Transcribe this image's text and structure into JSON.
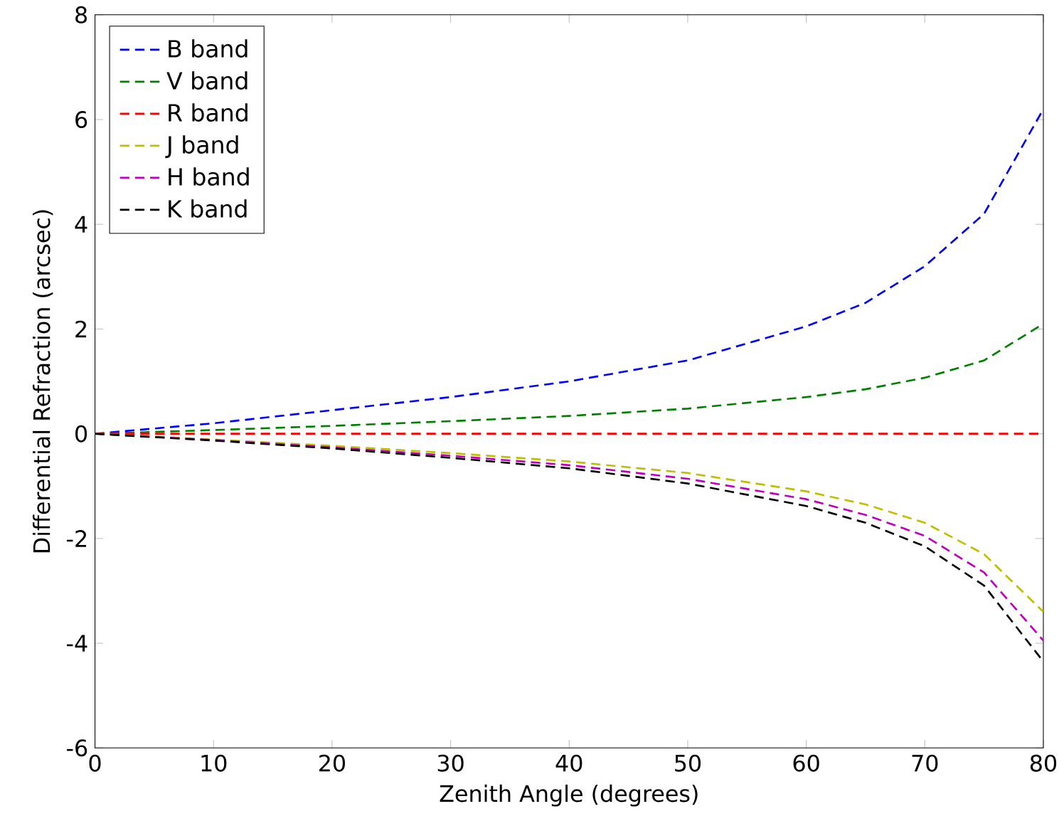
{
  "chart_data": {
    "type": "line",
    "xlabel": "Zenith Angle (degrees)",
    "ylabel": "Differential Refraction (arcsec)",
    "x": [
      0,
      10,
      20,
      30,
      40,
      50,
      60,
      65,
      70,
      75,
      80
    ],
    "series": [
      {
        "name": "B band",
        "color": "#0000ff",
        "values": [
          0,
          0.2,
          0.45,
          0.7,
          1.0,
          1.4,
          2.05,
          2.5,
          3.2,
          4.2,
          6.2
        ]
      },
      {
        "name": "V band",
        "color": "#008000",
        "values": [
          0,
          0.07,
          0.15,
          0.24,
          0.34,
          0.48,
          0.7,
          0.85,
          1.07,
          1.4,
          2.1
        ]
      },
      {
        "name": "R band",
        "color": "#ff0000",
        "values": [
          0,
          0,
          0,
          0,
          0,
          0,
          0,
          0,
          0,
          0,
          0
        ]
      },
      {
        "name": "J band",
        "color": "#bfbf00",
        "values": [
          0,
          -0.11,
          -0.23,
          -0.37,
          -0.53,
          -0.75,
          -1.1,
          -1.35,
          -1.7,
          -2.3,
          -3.4
        ]
      },
      {
        "name": "H band",
        "color": "#bf00bf",
        "values": [
          0,
          -0.12,
          -0.26,
          -0.42,
          -0.6,
          -0.86,
          -1.25,
          -1.55,
          -1.95,
          -2.65,
          -3.95
        ]
      },
      {
        "name": "K band",
        "color": "#000000",
        "values": [
          0,
          -0.13,
          -0.28,
          -0.46,
          -0.66,
          -0.95,
          -1.38,
          -1.7,
          -2.15,
          -2.9,
          -4.35
        ]
      }
    ],
    "xlim": [
      0,
      80
    ],
    "ylim": [
      -6,
      8
    ],
    "xticks": [
      0,
      10,
      20,
      30,
      40,
      50,
      60,
      70,
      80
    ],
    "yticks": [
      -6,
      -4,
      -2,
      0,
      2,
      4,
      6,
      8
    ],
    "legend": "top left",
    "grid": false,
    "marker": "none",
    "line_style": "dashed"
  }
}
